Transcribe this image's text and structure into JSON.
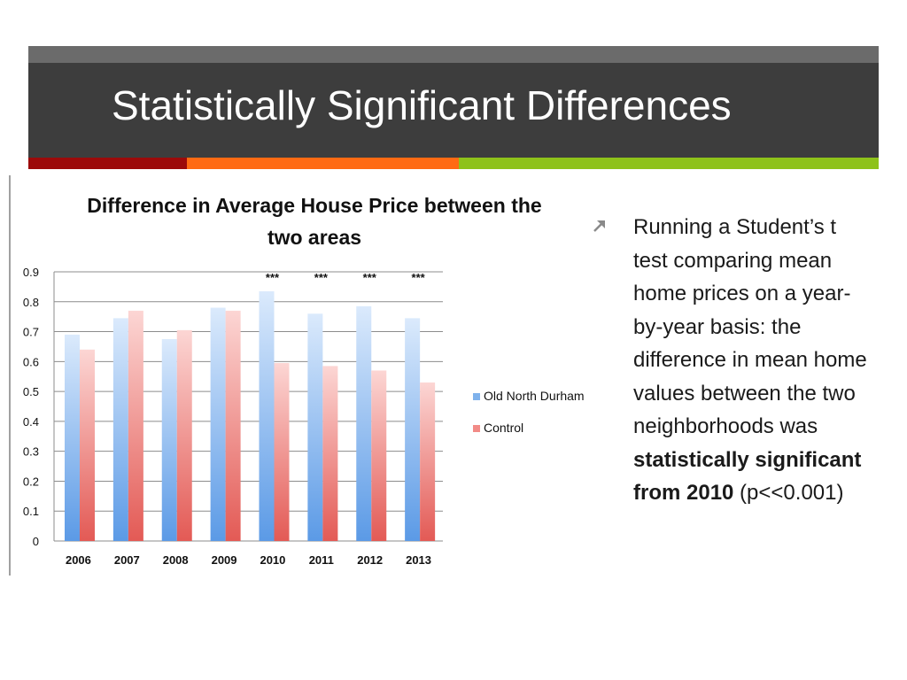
{
  "slide": {
    "title": "Statistically Significant Differences",
    "accent_colors": [
      "#9c0a0a",
      "#ff6a13",
      "#8ec21a"
    ]
  },
  "body": {
    "bullet_icon": "arrow-up-right-icon",
    "text_plain_1": "Running a Student’s t test comparing mean home prices on a year-by-year basis: the difference in mean home values between the two neighborhoods was ",
    "text_bold": "statistically significant from 2010",
    "text_plain_2": " (p<<0.001)"
  },
  "chart_data": {
    "type": "bar",
    "title": "Difference in Average House Price between the two areas",
    "categories": [
      "2006",
      "2007",
      "2008",
      "2009",
      "2010",
      "2011",
      "2012",
      "2013"
    ],
    "series": [
      {
        "name": "Old North Durham",
        "color": "#7fb2ec",
        "values": [
          0.69,
          0.745,
          0.675,
          0.78,
          0.835,
          0.76,
          0.785,
          0.745
        ]
      },
      {
        "name": "Control",
        "color": "#f28b87",
        "values": [
          0.64,
          0.77,
          0.705,
          0.77,
          0.595,
          0.585,
          0.57,
          0.53
        ]
      }
    ],
    "annotations": [
      "",
      "",
      "",
      "",
      "***",
      "***",
      "***",
      "***"
    ],
    "ylim": [
      0,
      0.9
    ],
    "yticks": [
      "0",
      "0.1",
      "0.2",
      "0.3",
      "0.4",
      "0.5",
      "0.6",
      "0.7",
      "0.8",
      "0.9"
    ],
    "grid": true,
    "legend": "right"
  }
}
